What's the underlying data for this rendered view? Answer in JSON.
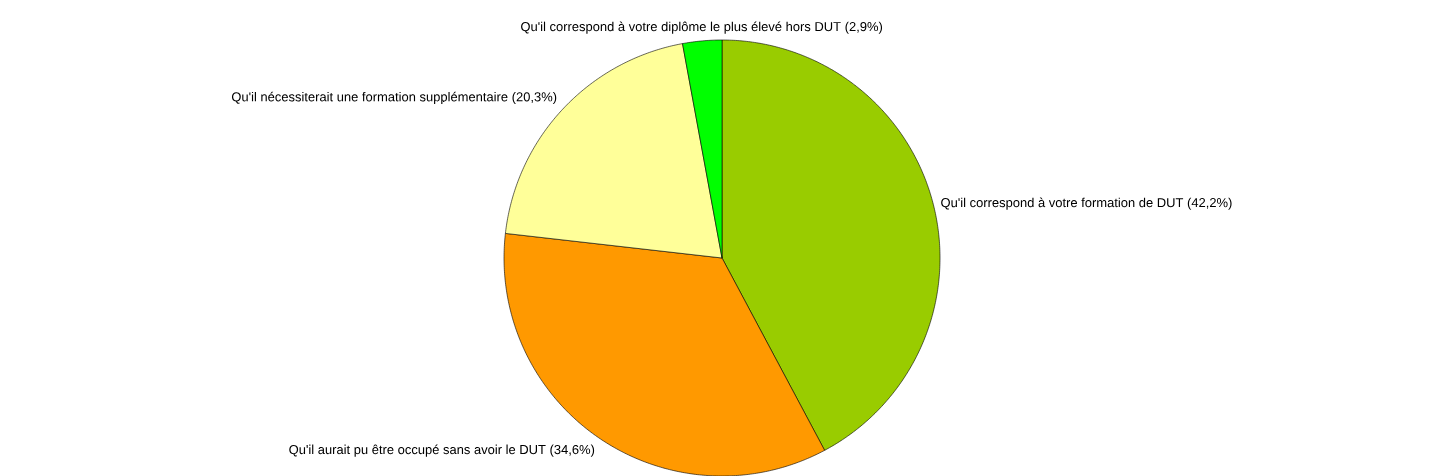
{
  "chart_data": {
    "type": "pie",
    "categories": [
      "Qu'il correspond à votre formation de DUT",
      "Qu'il aurait pu être occupé sans avoir le DUT",
      "Qu'il nécessiterait une formation supplémentaire",
      "Qu'il correspond à votre diplôme le plus élevé hors DUT"
    ],
    "values": [
      42.2,
      34.6,
      20.3,
      2.9
    ],
    "colors": [
      "#99cc00",
      "#ff9900",
      "#ffff99",
      "#00ff00"
    ],
    "value_labels": [
      "(42,2%)",
      "(34,6%)",
      "(20,3%)",
      "(2,9%)"
    ]
  }
}
